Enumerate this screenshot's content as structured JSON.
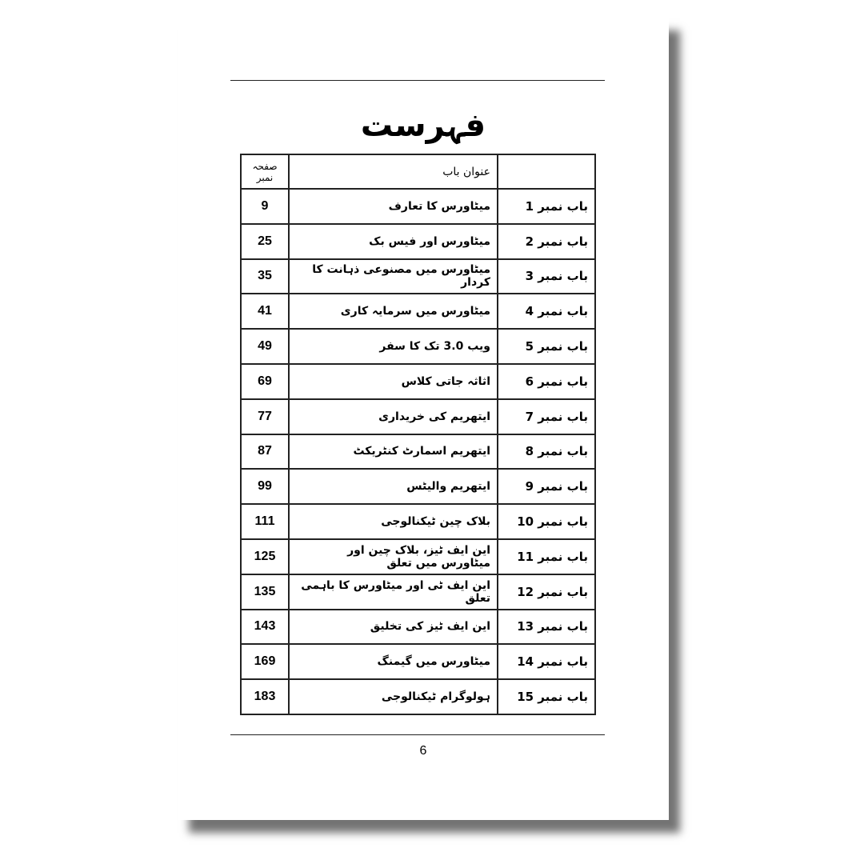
{
  "title": "فہرست",
  "headers": {
    "chapter": "",
    "title": "عنوان باب",
    "page": "صفحہ نمبر"
  },
  "rows": [
    {
      "chapter": "باب نمبر 1",
      "title": "میٹاورس کا تعارف",
      "page": "9"
    },
    {
      "chapter": "باب نمبر 2",
      "title": "میٹاورس اور فیس بک",
      "page": "25"
    },
    {
      "chapter": "باب نمبر 3",
      "title": "میٹاورس میں مصنوعی ذہانت کا کردار",
      "page": "35"
    },
    {
      "chapter": "باب نمبر 4",
      "title": "میٹاورس میں سرمایہ کاری",
      "page": "41"
    },
    {
      "chapter": "باب نمبر 5",
      "title": "ویب 3.0 تک کا سفر",
      "page": "49"
    },
    {
      "chapter": "باب نمبر 6",
      "title": "اثاثہ جاتی کلاس",
      "page": "69"
    },
    {
      "chapter": "باب نمبر 7",
      "title": "ایتھریم کی خریداری",
      "page": "77"
    },
    {
      "chapter": "باب نمبر 8",
      "title": "ایتھریم اسمارٹ کنٹریکٹ",
      "page": "87"
    },
    {
      "chapter": "باب نمبر 9",
      "title": "ایتھریم والیٹس",
      "page": "99"
    },
    {
      "chapter": "باب نمبر 10",
      "title": "بلاک چین ٹیکنالوجی",
      "page": "111"
    },
    {
      "chapter": "باب نمبر 11",
      "title": "این ایف ٹیز، بلاک چین اور میٹاورس میں تعلق",
      "page": "125"
    },
    {
      "chapter": "باب نمبر 12",
      "title": "این ایف ٹی اور میٹاورس کا باہمی تعلق",
      "page": "135"
    },
    {
      "chapter": "باب نمبر 13",
      "title": "این ایف ٹیز کی تخلیق",
      "page": "143"
    },
    {
      "chapter": "باب نمبر 14",
      "title": "میٹاورس میں گیمنگ",
      "page": "169"
    },
    {
      "chapter": "باب نمبر 15",
      "title": "ہولوگرام ٹیکنالوجی",
      "page": "183"
    }
  ],
  "page_number": "6"
}
